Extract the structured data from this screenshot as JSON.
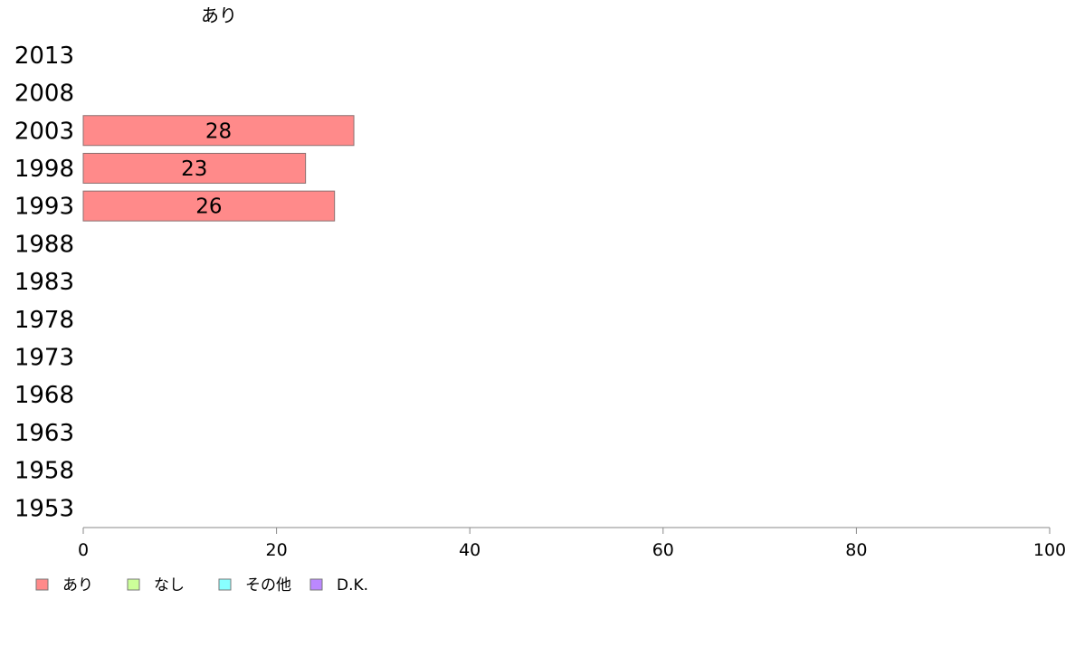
{
  "chart_data": {
    "type": "bar",
    "orientation": "horizontal",
    "stacked": true,
    "header": "あり",
    "categories": [
      "2013",
      "2008",
      "2003",
      "1998",
      "1993",
      "1988",
      "1983",
      "1978",
      "1973",
      "1968",
      "1963",
      "1958",
      "1953"
    ],
    "series": [
      {
        "name": "あり",
        "color": "#ff8a8a",
        "values": [
          null,
          null,
          28,
          23,
          26,
          null,
          null,
          null,
          null,
          null,
          null,
          null,
          null
        ]
      },
      {
        "name": "なし",
        "color": "#ccff99",
        "values": [
          null,
          null,
          null,
          null,
          null,
          null,
          null,
          null,
          null,
          null,
          null,
          null,
          null
        ]
      },
      {
        "name": "その他",
        "color": "#88ffff",
        "values": [
          null,
          null,
          null,
          null,
          null,
          null,
          null,
          null,
          null,
          null,
          null,
          null,
          null
        ]
      },
      {
        "name": "D.K.",
        "color": "#bb88ff",
        "values": [
          null,
          null,
          null,
          null,
          null,
          null,
          null,
          null,
          null,
          null,
          null,
          null,
          null
        ]
      }
    ],
    "xlim": [
      0,
      100
    ],
    "xticks": [
      0,
      20,
      40,
      60,
      80,
      100
    ],
    "grid": false,
    "legend_position": "bottom-left"
  }
}
